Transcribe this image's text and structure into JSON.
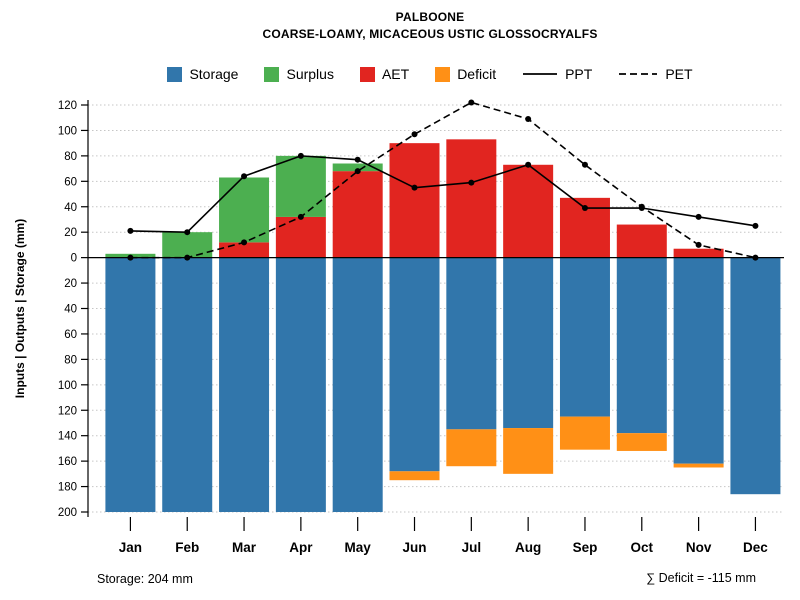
{
  "header": {
    "title": "PALBOONE",
    "subtitle": "COARSE-LOAMY, MICACEOUS USTIC GLOSSOCRYALFS"
  },
  "legend": {
    "storage": "Storage",
    "surplus": "Surplus",
    "aet": "AET",
    "deficit": "Deficit",
    "ppt": "PPT",
    "pet": "PET"
  },
  "footer": {
    "left": "Storage: 204 mm",
    "right": "∑ Deficit = -115 mm"
  },
  "colors": {
    "storage": "#3176ab",
    "surplus": "#4caf50",
    "aet": "#e12520",
    "deficit": "#ff9016",
    "line": "#000000",
    "grid": "#c6c6c6"
  },
  "chart_data": {
    "type": "bar",
    "title": "PALBOONE",
    "subtitle": "COARSE-LOAMY, MICACEOUS USTIC GLOSSOCRYALFS",
    "ylabel": "Inputs | Outputs | Storage   (mm)",
    "xlabel": "",
    "categories": [
      "Jan",
      "Feb",
      "Mar",
      "Apr",
      "May",
      "Jun",
      "Jul",
      "Aug",
      "Sep",
      "Oct",
      "Nov",
      "Dec"
    ],
    "ylim": [
      -200,
      120
    ],
    "ytick_step": 20,
    "grid": true,
    "legend_position": "top",
    "bar_series": [
      {
        "name": "AET",
        "color_key": "aet",
        "dir": "up",
        "values": [
          0,
          0,
          12,
          32,
          68,
          90,
          93,
          73,
          47,
          26,
          7,
          0
        ]
      },
      {
        "name": "Surplus",
        "color_key": "surplus",
        "dir": "up",
        "values": [
          3,
          20,
          51,
          48,
          6,
          0,
          0,
          0,
          0,
          0,
          0,
          0
        ]
      },
      {
        "name": "Storage",
        "color_key": "storage",
        "dir": "down",
        "values": [
          200,
          200,
          200,
          200,
          200,
          168,
          135,
          134,
          125,
          138,
          162,
          186
        ]
      },
      {
        "name": "Deficit",
        "color_key": "deficit",
        "dir": "down",
        "values": [
          0,
          0,
          0,
          0,
          0,
          7,
          29,
          36,
          26,
          14,
          3,
          0
        ]
      }
    ],
    "line_series": [
      {
        "name": "PPT",
        "dash": false,
        "values": [
          21,
          20,
          64,
          80,
          77,
          55,
          59,
          73,
          39,
          39,
          32,
          25
        ]
      },
      {
        "name": "PET",
        "dash": true,
        "values": [
          0,
          0,
          12,
          32,
          68,
          97,
          122,
          109,
          73,
          40,
          10,
          0
        ]
      }
    ],
    "annotations": {
      "storage_total": "Storage: 204 mm",
      "deficit_total": "∑ Deficit = -115 mm"
    }
  }
}
